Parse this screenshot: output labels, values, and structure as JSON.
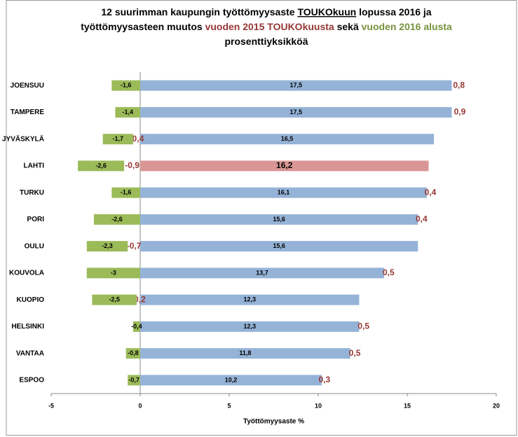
{
  "chart_data": {
    "type": "bar",
    "orientation": "horizontal",
    "stacked": true,
    "title": [
      [
        {
          "text": "12 suurimman kaupungin työttömyysaste "
        },
        {
          "text": "TOUKOkuun",
          "underline": true
        },
        {
          "text": " lopussa 2016 ja"
        }
      ],
      [
        {
          "text": "työttömyysasteen muutos "
        },
        {
          "text": "vuoden 2015 TOUKOkuusta",
          "color": "#953735"
        },
        {
          "text": " sekä "
        },
        {
          "text": "vuoden 2016 alusta",
          "color": "#77933c"
        }
      ],
      [
        {
          "text": "prosenttiyksikköä"
        }
      ]
    ],
    "xlabel": "Työttömyysaste %",
    "categories": [
      "JOENSUU",
      "TAMPERE",
      "JYVÄSKYLÄ",
      "LAHTI",
      "TURKU",
      "PORI",
      "OULU",
      "KOUVOLA",
      "KUOPIO",
      "HELSINKI",
      "VANTAA",
      "ESPOO"
    ],
    "series": [
      {
        "color": "#95b3d7",
        "colors": [
          "#95b3d7",
          "#95b3d7",
          "#95b3d7",
          "#d99694",
          "#95b3d7",
          "#95b3d7",
          "#95b3d7",
          "#95b3d7",
          "#95b3d7",
          "#95b3d7",
          "#95b3d7",
          "#95b3d7"
        ],
        "values": [
          17.5,
          17.5,
          16.5,
          16.2,
          16.1,
          15.6,
          15.6,
          13.7,
          12.3,
          12.3,
          11.8,
          10.2
        ],
        "value_labels": [
          "17,5",
          "17,5",
          "16,5",
          "16,2",
          "16,1",
          "15,6",
          "15,6",
          "13,7",
          "12,3",
          "12,3",
          "11,8",
          "10,2"
        ]
      },
      {
        "color": "none",
        "label_color": "#953735",
        "values": [
          0.8,
          0.9,
          -0.4,
          -0.9,
          0.4,
          0.4,
          -0.7,
          0.5,
          -0.2,
          0.5,
          0.5,
          0.3
        ],
        "value_labels": [
          "0,8",
          "0,9",
          "-0,4",
          "-0,9",
          "0,4",
          "0,4",
          "-0,7",
          "0,5",
          "-0,2",
          "0,5",
          "0,5",
          "0,3"
        ]
      },
      {
        "color": "#9bbb59",
        "values": [
          -1.6,
          -1.4,
          -1.7,
          -2.6,
          -1.6,
          -2.6,
          -2.3,
          -3,
          -2.5,
          -0.4,
          -0.8,
          -0.7
        ],
        "value_labels": [
          "-1,6",
          "-1,4",
          "-1,7",
          "-2,6",
          "-1,6",
          "-2,6",
          "-2,3",
          "-3",
          "-2,5",
          "-0,4",
          "-0,8",
          "-0,7"
        ]
      }
    ],
    "xlim": [
      -5,
      20
    ],
    "xticks": [
      -5,
      0,
      5,
      10,
      15,
      20
    ]
  }
}
